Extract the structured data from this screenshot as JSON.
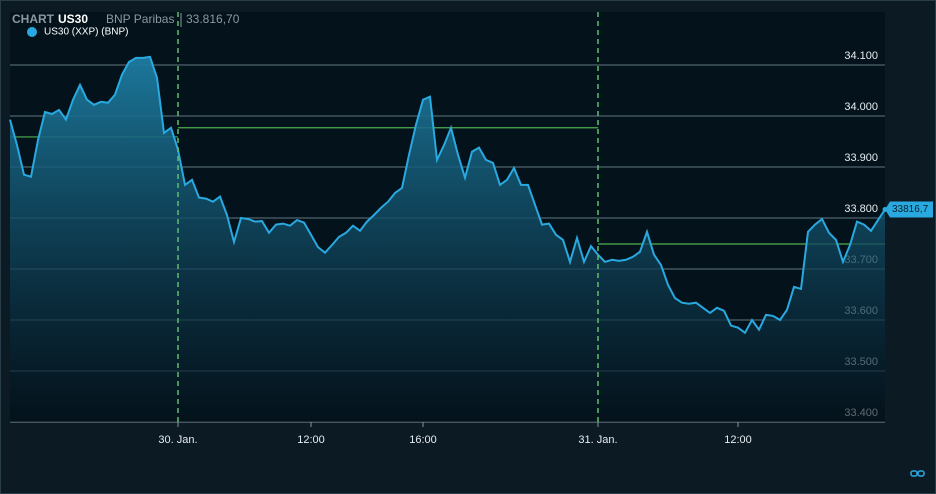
{
  "header": {
    "label": "CHART",
    "symbol": "US30",
    "provider": "BNP Paribas",
    "price": "33.816,70"
  },
  "chart_data": {
    "type": "line",
    "legend": "top-left",
    "categories": [
      null,
      null,
      null,
      null,
      null,
      null,
      null,
      null,
      null,
      null,
      null,
      null,
      null,
      null,
      null,
      null,
      null,
      null,
      null,
      null,
      null,
      null,
      null,
      null,
      "30. Jan.",
      null,
      null,
      null,
      null,
      null,
      null,
      null,
      null,
      null,
      null,
      null,
      null,
      null,
      null,
      null,
      null,
      null,
      null,
      "12:00",
      null,
      null,
      null,
      null,
      null,
      null,
      null,
      null,
      null,
      null,
      null,
      null,
      null,
      null,
      null,
      "16:00",
      null,
      null,
      null,
      null,
      null,
      null,
      null,
      null,
      null,
      null,
      null,
      null,
      null,
      null,
      null,
      null,
      null,
      null,
      null,
      null,
      null,
      null,
      null,
      null,
      "31. Jan.",
      null,
      null,
      null,
      null,
      null,
      null,
      null,
      null,
      null,
      null,
      null,
      null,
      null,
      null,
      null,
      null,
      null,
      null,
      null,
      "12:00",
      null,
      null,
      null,
      null,
      null,
      null,
      null,
      null,
      null,
      null,
      null,
      null,
      null,
      null,
      null,
      null,
      null,
      null,
      null,
      null,
      null
    ],
    "series": [
      {
        "name": "US30 (XXP) (BNP)",
        "color": "#29a9e0",
        "values": [
          33993,
          33943,
          33885,
          33881,
          33953,
          34008,
          34004,
          34012,
          33993,
          34032,
          34061,
          34032,
          34022,
          34028,
          34026,
          34042,
          34081,
          34106,
          34114,
          34114,
          34116,
          34075,
          33967,
          33977,
          33934,
          33865,
          33875,
          33840,
          33838,
          33832,
          33842,
          33806,
          33753,
          33800,
          33798,
          33793,
          33794,
          33771,
          33787,
          33789,
          33785,
          33796,
          33791,
          33767,
          33743,
          33732,
          33747,
          33763,
          33771,
          33785,
          33775,
          33793,
          33806,
          33820,
          33832,
          33849,
          33859,
          33924,
          33983,
          34032,
          34038,
          33914,
          33943,
          33977,
          33924,
          33879,
          33930,
          33938,
          33914,
          33908,
          33865,
          33875,
          33898,
          33865,
          33865,
          33826,
          33787,
          33789,
          33767,
          33757,
          33714,
          33761,
          33714,
          33745,
          33728,
          33714,
          33718,
          33716,
          33718,
          33724,
          33734,
          33773,
          33728,
          33708,
          33669,
          33643,
          33634,
          33632,
          33634,
          33624,
          33614,
          33624,
          33618,
          33589,
          33585,
          33575,
          33600,
          33581,
          33610,
          33608,
          33600,
          33620,
          33665,
          33661,
          33773,
          33787,
          33798,
          33771,
          33757,
          33714,
          33747,
          33793,
          33787,
          33775,
          33796,
          33816.7
        ],
        "last_label": "33816,7"
      }
    ],
    "previous_close": [
      33959,
      33977,
      33749
    ],
    "ylim": [
      33400,
      34204
    ],
    "yticks": [
      {
        "value": 33400,
        "label": "33.400"
      },
      {
        "value": 33500,
        "label": "33.500"
      },
      {
        "value": 33600,
        "label": "33.600"
      },
      {
        "value": 33700,
        "label": "33.700"
      },
      {
        "value": 33800,
        "label": "33.800"
      },
      {
        "value": 33900,
        "label": "33.900"
      },
      {
        "value": 34000,
        "label": "34.000"
      },
      {
        "value": 34100,
        "label": "34.100"
      }
    ],
    "grid": true
  }
}
